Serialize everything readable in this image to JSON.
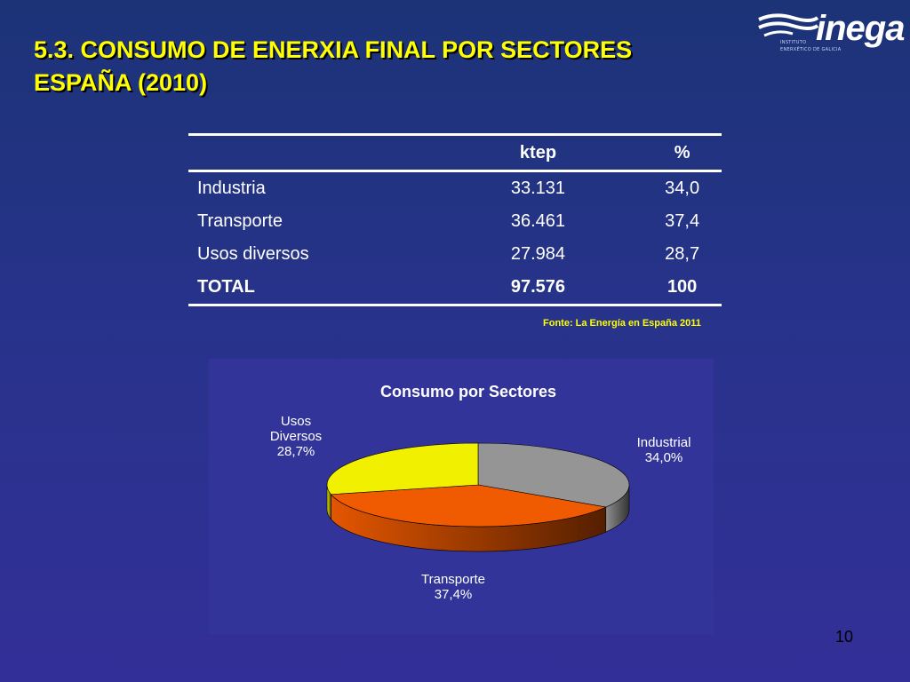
{
  "slide": {
    "title_line1": "5.3. CONSUMO DE ENERXIA FINAL POR SECTORES",
    "title_line2": "ESPAÑA (2010)",
    "page_number": "10"
  },
  "logo": {
    "wordmark": "inega",
    "sub_line1": "INSTITUTO",
    "sub_line2": "ENERXÉTICO DE GALICIA"
  },
  "table": {
    "headers": [
      "",
      "ktep",
      "%"
    ],
    "rows": [
      {
        "label": "Industria",
        "ktep": "33.131",
        "pct": "34,0"
      },
      {
        "label": "Transporte",
        "ktep": "36.461",
        "pct": "37,4"
      },
      {
        "label": "Usos diversos",
        "ktep": "27.984",
        "pct": "28,7"
      }
    ],
    "total": {
      "label": "TOTAL",
      "ktep": "97.576",
      "pct": "100"
    }
  },
  "source": "Fonte: La Energía  en España 2011",
  "chart_data": {
    "type": "pie",
    "title": "Consumo por Sectores",
    "slices": [
      {
        "name": "Industrial",
        "value": 34.0,
        "label": "34,0%",
        "color": "#959595"
      },
      {
        "name": "Transporte",
        "value": 37.4,
        "label": "37,4%",
        "color": "#f05a00"
      },
      {
        "name": "Usos Diversos",
        "value": 28.7,
        "label": "28,7%",
        "color": "#f0f000"
      }
    ],
    "legend": "none",
    "three_d": true
  },
  "colors": {
    "title": "#ffff00",
    "background": "#27338a",
    "chart_background": "#32349a",
    "text": "#ffffff"
  }
}
